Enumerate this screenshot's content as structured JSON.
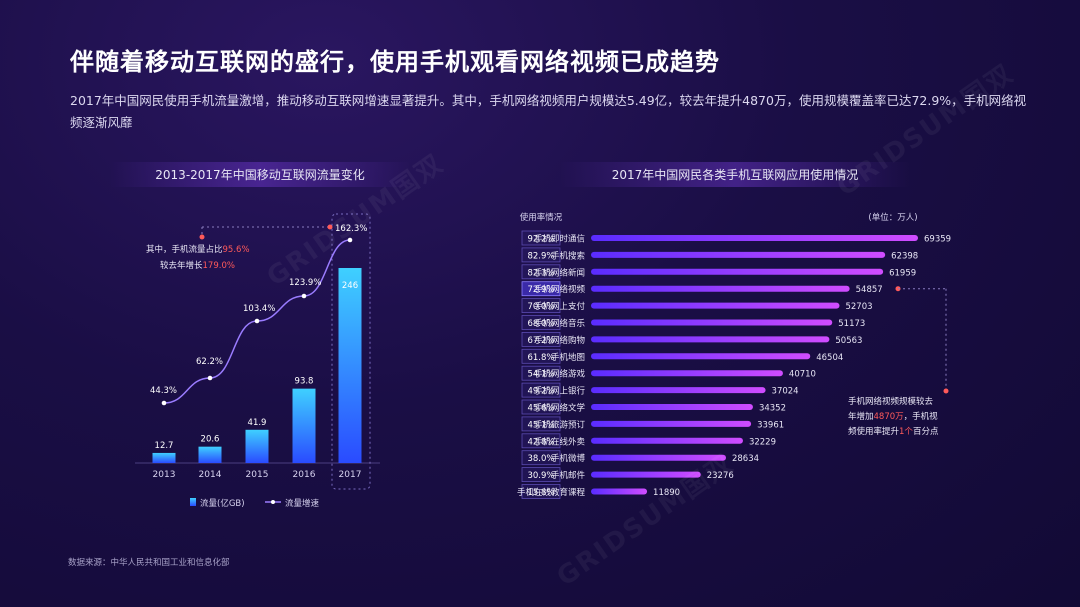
{
  "title": "伴随着移动互联网的盛行，使用手机观看网络视频已成趋势",
  "description": "2017年中国网民使用手机流量激增，推动移动互联网增速显著提升。其中，手机网络视频用户规模达5.49亿，较去年提升4870万，使用规模覆盖率已达72.9%，手机网络视频逐渐风靡",
  "colors": {
    "accent": "#8a5cff",
    "bar_top": "#3fd0ff",
    "bar_bottom": "#2a4bff",
    "highlight": "#ff5a5a"
  },
  "chart_data": [
    {
      "type": "bar",
      "title": "2013-2017年中国移动互联网流量变化",
      "categories": [
        "2013",
        "2014",
        "2015",
        "2016",
        "2017"
      ],
      "series": [
        {
          "name": "流量(亿GB)",
          "type": "bar",
          "values": [
            12.7,
            20.6,
            41.9,
            93.8,
            246
          ]
        },
        {
          "name": "流量增速",
          "type": "line",
          "values": [
            "44.3%",
            "62.2%",
            "103.4%",
            "123.9%",
            "162.3%"
          ]
        }
      ],
      "annotation": {
        "text_a": "其中，手机流量占比",
        "value_a": "95.6%",
        "text_b": "较去年增长",
        "value_b": "179.0%"
      },
      "legend_position": "bottom"
    },
    {
      "type": "bar",
      "title": "2017年中国网民各类手机互联网应用使用情况",
      "rate_header": "使用率情况",
      "unit": "(单位：万人)",
      "categories": [
        "手机即时通信",
        "手机搜索",
        "手机网络新闻",
        "手机网络视频",
        "手机网上支付",
        "手机网络音乐",
        "手机网络购物",
        "手机地图",
        "手机网络游戏",
        "手机网上银行",
        "手机网络文学",
        "手机旅游预订",
        "手机在线外卖",
        "手机微博",
        "手机邮件",
        "手机在线教育课程"
      ],
      "values": [
        69359,
        62398,
        61959,
        54857,
        52703,
        51173,
        50563,
        46504,
        40710,
        37024,
        34352,
        33961,
        32229,
        28634,
        23276,
        11890
      ],
      "rates": [
        "92.2%",
        "82.9%",
        "82.3%",
        "72.9%",
        "70.0%",
        "68.0%",
        "67.2%",
        "61.8%",
        "54.1%",
        "49.2%",
        "45.6%",
        "45.1%",
        "42.8%",
        "38.0%",
        "30.9%",
        "15.8%"
      ],
      "highlight_index": 3,
      "annotation": {
        "text_a": "手机网络视频规模较去",
        "text_b": "年增加",
        "value_b": "4870万",
        "text_c": "，手机视",
        "text_d": "频使用率提升",
        "value_d": "1个",
        "text_e": "百分点"
      }
    }
  ],
  "source": "数据来源：中华人民共和国工业和信息化部",
  "watermark": "GRIDSUM国双"
}
